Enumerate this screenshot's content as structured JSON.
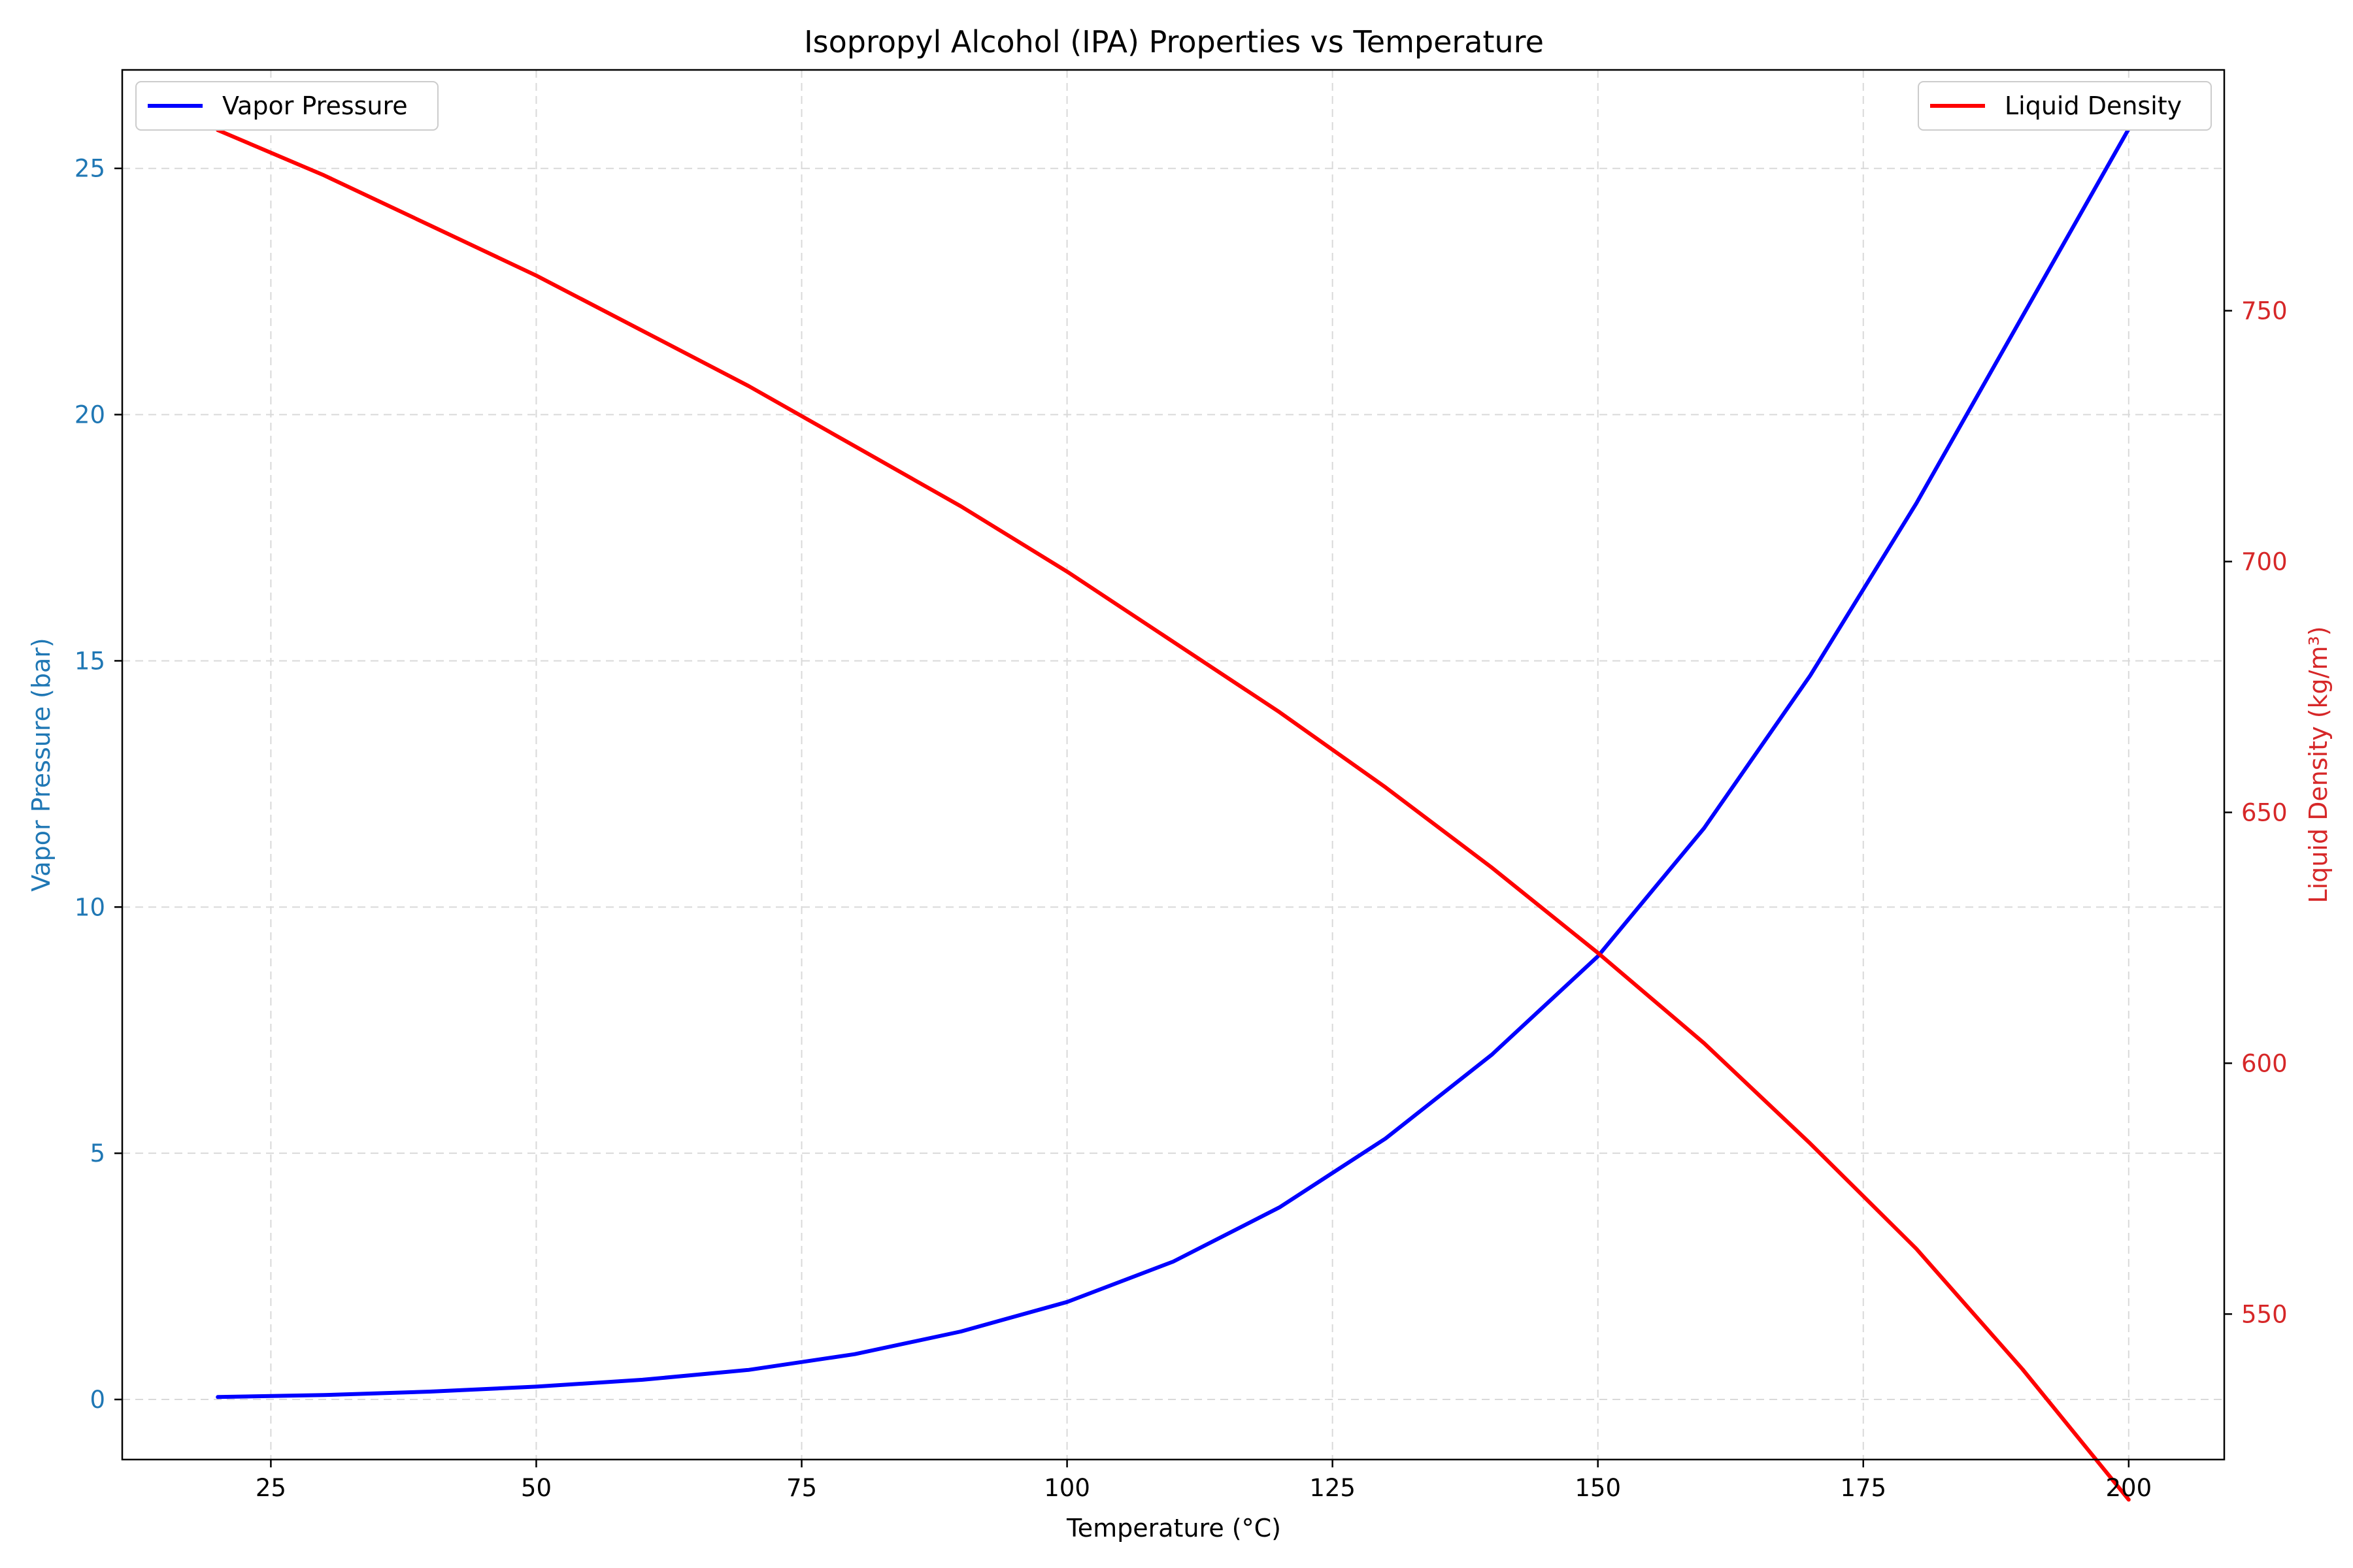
{
  "chart_data": {
    "type": "line",
    "title": "Isopropyl Alcohol (IPA) Properties vs Temperature",
    "xlabel": "Temperature (°C)",
    "ylabel": "Vapor Pressure (bar)",
    "y2label": "Liquid Density (kg/m³)",
    "xlim": [
      11,
      209
    ],
    "ylim": [
      -1.22,
      27.0
    ],
    "y2lim": [
      521.0,
      798.0
    ],
    "xticks": [
      25,
      50,
      75,
      100,
      125,
      150,
      175,
      200
    ],
    "yticks": [
      0,
      5,
      10,
      15,
      20,
      25
    ],
    "y2ticks": [
      550,
      600,
      650,
      700,
      750
    ],
    "grid": true,
    "colors": {
      "vapor": "#0000ff",
      "density": "#ff0000",
      "left_axis": "#1f77b4",
      "right_axis": "#d62728",
      "grid": "#d9d9d9"
    },
    "series": [
      {
        "name": "Vapor Pressure",
        "axis": "left",
        "color": "#0000ff",
        "legend_position": "upper-left",
        "x": [
          20,
          30,
          40,
          50,
          60,
          70,
          80,
          90,
          100,
          110,
          120,
          130,
          140,
          150,
          160,
          170,
          180,
          190,
          200
        ],
        "values": [
          0.05,
          0.09,
          0.16,
          0.26,
          0.4,
          0.6,
          0.92,
          1.38,
          1.98,
          2.8,
          3.9,
          5.3,
          7.0,
          9.0,
          11.6,
          14.7,
          18.2,
          22.0,
          25.8
        ]
      },
      {
        "name": "Liquid Density",
        "axis": "right",
        "color": "#ff0000",
        "legend_position": "upper-right",
        "x": [
          20,
          30,
          40,
          50,
          60,
          70,
          80,
          90,
          100,
          110,
          120,
          130,
          140,
          150,
          160,
          170,
          180,
          190,
          200
        ],
        "values": [
          786,
          777,
          767,
          757,
          746,
          735,
          723,
          711,
          698,
          684,
          670,
          655,
          639,
          622,
          604,
          584,
          563,
          539,
          513
        ]
      }
    ]
  }
}
